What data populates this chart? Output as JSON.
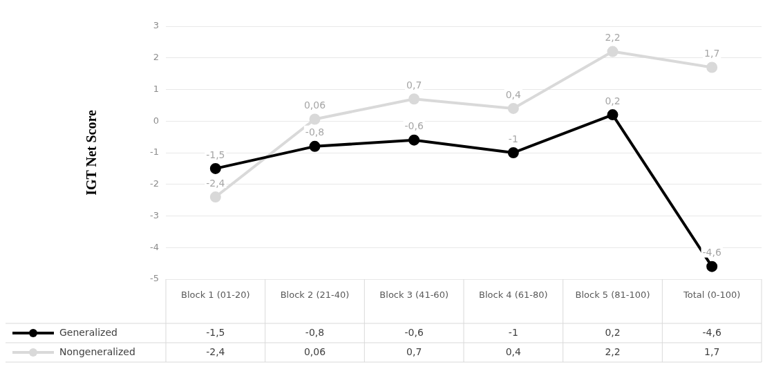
{
  "chart_data": {
    "type": "line",
    "ylabel": "IGT Net Score",
    "categories": [
      "Block 1 (01-20)",
      "Block 2 (21-40)",
      "Block 3 (41-60)",
      "Block 4 (61-80)",
      "Block 5 (81-100)",
      "Total (0-100)"
    ],
    "series": [
      {
        "name": "Generalized",
        "color": "#000000",
        "values": [
          -1.5,
          -0.8,
          -0.6,
          -1,
          0.2,
          -4.6
        ],
        "value_labels": [
          "-1,5",
          "-0,8",
          "-0,6",
          "-1",
          "0,2",
          "-4,6"
        ]
      },
      {
        "name": "Nongeneralized",
        "color": "#d9d9d9",
        "values": [
          -2.4,
          0.06,
          0.7,
          0.4,
          2.2,
          1.7
        ],
        "value_labels": [
          "-2,4",
          "0,06",
          "0,7",
          "0,4",
          "2,2",
          "1,7"
        ]
      }
    ],
    "ylim": [
      -5,
      3
    ],
    "yticks": [
      -5,
      -4,
      -3,
      -2,
      -1,
      0,
      1,
      2,
      3
    ],
    "grid": "y",
    "legend": "bottom",
    "marker": "circle",
    "line_style": "solid"
  }
}
